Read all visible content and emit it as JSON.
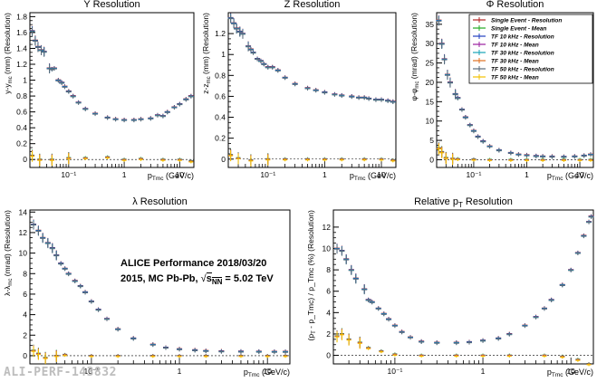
{
  "colors": {
    "single_event_resolution": "#b22222",
    "single_event_mean": "#22aa22",
    "tf10_resolution": "#1f3fbf",
    "tf10_mean": "#9b1fa0",
    "tf30_resolution": "#17a2b8",
    "tf30_mean": "#e07020",
    "tf50_resolution": "#5a6a7a",
    "tf50_mean": "#f2c200"
  },
  "watermark": "ALI-PERF-143832",
  "annotation": {
    "line1": "ALICE Performance 2018/03/20",
    "line2": "2015, MC Pb-Pb, ",
    "sqrt_s": "s",
    "sqrt_sub": "NN",
    "energy": " = 5.02 TeV"
  },
  "legend": [
    {
      "label": "Single Event - Resolution",
      "color": "#b22222"
    },
    {
      "label": "Single Event - Mean",
      "color": "#22aa22"
    },
    {
      "label": "TF 10 kHz - Resolution",
      "color": "#1f3fbf"
    },
    {
      "label": "TF 10 kHz - Mean",
      "color": "#9b1fa0"
    },
    {
      "label": "TF 30 kHz - Resolution",
      "color": "#17a2b8"
    },
    {
      "label": "TF 30 kHz - Mean",
      "color": "#e07020"
    },
    {
      "label": "TF 50 kHz - Resolution",
      "color": "#5a6a7a"
    },
    {
      "label": "TF 50 kHz - Mean",
      "color": "#f2c200"
    }
  ],
  "chart_data": [
    {
      "type": "scatter",
      "title": "Y Resolution",
      "ylabel": "y-y",
      "ylabel_sub": "mc",
      "ylabel_tail": " (mm) (Resolution)",
      "xlabel": "p",
      "xlabel_sub": "Tmc",
      "xlabel_tail": " (GeV/c)",
      "xscale": "log",
      "xlim": [
        0.02,
        18
      ],
      "ylim": [
        -0.1,
        1.85
      ],
      "yticks": [
        0,
        0.2,
        0.4,
        0.6,
        0.8,
        1,
        1.2,
        1.4,
        1.6,
        1.8
      ],
      "ytick_labels": [
        "0",
        "0.2",
        "0.4",
        "0.6",
        "0.8",
        "1",
        "1.2",
        "1.4",
        "1.6",
        "1.8"
      ],
      "xtick_labels": {
        "0.1": "10⁻¹",
        "1": "1",
        "10": "10"
      },
      "resolution": [
        [
          0.022,
          1.62
        ],
        [
          0.025,
          1.5
        ],
        [
          0.028,
          1.42
        ],
        [
          0.032,
          1.38
        ],
        [
          0.036,
          1.36
        ],
        [
          0.045,
          1.15
        ],
        [
          0.05,
          1.14
        ],
        [
          0.055,
          1.15
        ],
        [
          0.065,
          1.0
        ],
        [
          0.075,
          0.97
        ],
        [
          0.085,
          0.92
        ],
        [
          0.1,
          0.86
        ],
        [
          0.12,
          0.8
        ],
        [
          0.15,
          0.72
        ],
        [
          0.2,
          0.64
        ],
        [
          0.3,
          0.58
        ],
        [
          0.5,
          0.53
        ],
        [
          0.7,
          0.51
        ],
        [
          1,
          0.5
        ],
        [
          1.5,
          0.5
        ],
        [
          2,
          0.51
        ],
        [
          3,
          0.52
        ],
        [
          4,
          0.56
        ],
        [
          5,
          0.55
        ],
        [
          6,
          0.6
        ],
        [
          8,
          0.66
        ],
        [
          10,
          0.7
        ],
        [
          13,
          0.76
        ],
        [
          16,
          0.8
        ]
      ],
      "mean": [
        [
          0.022,
          0.05
        ],
        [
          0.03,
          0.0
        ],
        [
          0.05,
          0.0
        ],
        [
          0.1,
          0.02
        ],
        [
          0.2,
          0.02
        ],
        [
          0.5,
          0.03
        ],
        [
          1,
          0.0
        ],
        [
          2,
          0.01
        ],
        [
          5,
          0.0
        ],
        [
          10,
          0.0
        ],
        [
          16,
          -0.02
        ]
      ]
    },
    {
      "type": "scatter",
      "title": "Z Resolution",
      "ylabel": "z-z",
      "ylabel_sub": "mc",
      "ylabel_tail": " (mm) (Resolution)",
      "xlabel": "p",
      "xlabel_sub": "Tmc",
      "xlabel_tail": " (GeV/c)",
      "xscale": "log",
      "xlim": [
        0.02,
        18
      ],
      "ylim": [
        -0.08,
        1.4
      ],
      "yticks": [
        0,
        0.2,
        0.4,
        0.6,
        0.8,
        1,
        1.2
      ],
      "ytick_labels": [
        "0",
        "0.2",
        "0.4",
        "0.6",
        "0.8",
        "1",
        "1.2"
      ],
      "xtick_labels": {
        "0.1": "10⁻¹",
        "1": "1",
        "10": "10"
      },
      "resolution": [
        [
          0.022,
          1.35
        ],
        [
          0.025,
          1.3
        ],
        [
          0.028,
          1.25
        ],
        [
          0.032,
          1.22
        ],
        [
          0.036,
          1.2
        ],
        [
          0.045,
          1.08
        ],
        [
          0.05,
          1.05
        ],
        [
          0.055,
          1.02
        ],
        [
          0.065,
          0.96
        ],
        [
          0.075,
          0.94
        ],
        [
          0.085,
          0.91
        ],
        [
          0.1,
          0.88
        ],
        [
          0.12,
          0.88
        ],
        [
          0.15,
          0.85
        ],
        [
          0.2,
          0.78
        ],
        [
          0.3,
          0.72
        ],
        [
          0.5,
          0.68
        ],
        [
          0.7,
          0.66
        ],
        [
          1,
          0.64
        ],
        [
          1.5,
          0.62
        ],
        [
          2,
          0.61
        ],
        [
          3,
          0.6
        ],
        [
          4,
          0.59
        ],
        [
          5,
          0.59
        ],
        [
          6,
          0.58
        ],
        [
          8,
          0.57
        ],
        [
          10,
          0.57
        ],
        [
          13,
          0.56
        ],
        [
          16,
          0.55
        ]
      ],
      "mean": [
        [
          0.022,
          0.04
        ],
        [
          0.03,
          0.01
        ],
        [
          0.05,
          -0.01
        ],
        [
          0.1,
          0.0
        ],
        [
          0.2,
          0.0
        ],
        [
          0.5,
          0.0
        ],
        [
          1,
          0.0
        ],
        [
          2,
          0.0
        ],
        [
          5,
          0.0
        ],
        [
          10,
          0.0
        ],
        [
          16,
          -0.01
        ]
      ]
    },
    {
      "type": "scatter",
      "title": "Φ Resolution",
      "ylabel": "φ-φ",
      "ylabel_sub": "mc",
      "ylabel_tail": " (mrad) (Resolution)",
      "xlabel": "p",
      "xlabel_sub": "Tmc",
      "xlabel_tail": " (GeV/c)",
      "xscale": "log",
      "xlim": [
        0.02,
        18
      ],
      "ylim": [
        -2,
        38
      ],
      "yticks": [
        0,
        5,
        10,
        15,
        20,
        25,
        30,
        35
      ],
      "ytick_labels": [
        "0",
        "5",
        "10",
        "15",
        "20",
        "25",
        "30",
        "35"
      ],
      "xtick_labels": {
        "0.1": "10⁻¹",
        "1": "1",
        "10": "10"
      },
      "resolution": [
        [
          0.022,
          36
        ],
        [
          0.025,
          30
        ],
        [
          0.028,
          26
        ],
        [
          0.032,
          22
        ],
        [
          0.036,
          20
        ],
        [
          0.045,
          17
        ],
        [
          0.05,
          16
        ],
        [
          0.06,
          13
        ],
        [
          0.07,
          11
        ],
        [
          0.085,
          9
        ],
        [
          0.1,
          7.5
        ],
        [
          0.12,
          6
        ],
        [
          0.15,
          4.8
        ],
        [
          0.2,
          3.5
        ],
        [
          0.3,
          2.5
        ],
        [
          0.5,
          1.8
        ],
        [
          0.7,
          1.4
        ],
        [
          1,
          1.2
        ],
        [
          1.5,
          1.0
        ],
        [
          2,
          0.9
        ],
        [
          3,
          0.85
        ],
        [
          5,
          0.8
        ],
        [
          8,
          0.9
        ],
        [
          12,
          1.1
        ],
        [
          16,
          1.4
        ]
      ],
      "mean": [
        [
          0.022,
          3
        ],
        [
          0.025,
          2
        ],
        [
          0.03,
          0.5
        ],
        [
          0.04,
          0.3
        ],
        [
          0.05,
          0.2
        ],
        [
          0.1,
          0.1
        ],
        [
          0.2,
          0
        ],
        [
          0.5,
          0
        ],
        [
          1,
          0
        ],
        [
          2,
          0
        ],
        [
          5,
          0
        ],
        [
          10,
          0
        ],
        [
          16,
          0
        ]
      ]
    },
    {
      "type": "scatter",
      "title": "λ Resolution",
      "ylabel": "λ-λ",
      "ylabel_sub": "mc",
      "ylabel_tail": " (mrad) (Resolution)",
      "xlabel": "p",
      "xlabel_sub": "Tmc",
      "xlabel_tail": " (GeV/c)",
      "xscale": "log",
      "xlim": [
        0.02,
        18
      ],
      "ylim": [
        -0.8,
        14.2
      ],
      "yticks": [
        0,
        2,
        4,
        6,
        8,
        10,
        12,
        14
      ],
      "ytick_labels": [
        "0",
        "2",
        "4",
        "6",
        "8",
        "10",
        "12",
        "14"
      ],
      "xtick_labels": {
        "0.1": "10⁻¹",
        "1": "1",
        "10": "10"
      },
      "resolution": [
        [
          0.022,
          12.8
        ],
        [
          0.025,
          12.2
        ],
        [
          0.028,
          11.5
        ],
        [
          0.032,
          11.0
        ],
        [
          0.036,
          10.5
        ],
        [
          0.04,
          9.8
        ],
        [
          0.045,
          9.0
        ],
        [
          0.05,
          8.5
        ],
        [
          0.055,
          8.0
        ],
        [
          0.065,
          7.3
        ],
        [
          0.075,
          6.8
        ],
        [
          0.085,
          6.2
        ],
        [
          0.1,
          5.3
        ],
        [
          0.12,
          4.5
        ],
        [
          0.15,
          3.6
        ],
        [
          0.2,
          2.6
        ],
        [
          0.3,
          1.7
        ],
        [
          0.5,
          1.1
        ],
        [
          0.7,
          0.8
        ],
        [
          1,
          0.65
        ],
        [
          1.5,
          0.55
        ],
        [
          2,
          0.48
        ],
        [
          3,
          0.44
        ],
        [
          5,
          0.42
        ],
        [
          8,
          0.41
        ],
        [
          12,
          0.4
        ],
        [
          16,
          0.4
        ]
      ],
      "mean": [
        [
          0.022,
          0.5
        ],
        [
          0.025,
          0.2
        ],
        [
          0.03,
          -0.2
        ],
        [
          0.04,
          0.0
        ],
        [
          0.05,
          0.1
        ],
        [
          0.1,
          0.0
        ],
        [
          0.2,
          0
        ],
        [
          0.5,
          0
        ],
        [
          1,
          0
        ],
        [
          2,
          0
        ],
        [
          5,
          0
        ],
        [
          10,
          0
        ],
        [
          16,
          0
        ]
      ]
    },
    {
      "type": "scatter",
      "title": "Relative p",
      "title_sub": "T",
      "title_tail": " Resolution",
      "ylabel": "(p",
      "ylabel_sub": "T",
      "ylabel_tail": " - p_Tmc) / p_Tmc (%) (Resolution)",
      "xlabel": "p",
      "xlabel_sub": "Tmc",
      "xlabel_tail": " (GeV/c)",
      "xscale": "log",
      "xlim": [
        0.02,
        18
      ],
      "ylim": [
        -0.8,
        13.6
      ],
      "yticks": [
        0,
        2,
        4,
        6,
        8,
        10,
        12
      ],
      "ytick_labels": [
        "0",
        "2",
        "4",
        "6",
        "8",
        "10",
        "12"
      ],
      "xtick_labels": {
        "0.1": "10⁻¹",
        "1": "1",
        "10": "10"
      },
      "resolution": [
        [
          0.022,
          10.0
        ],
        [
          0.025,
          9.8
        ],
        [
          0.028,
          9.0
        ],
        [
          0.032,
          8.0
        ],
        [
          0.036,
          7.2
        ],
        [
          0.045,
          6.2
        ],
        [
          0.05,
          5.2
        ],
        [
          0.055,
          5.0
        ],
        [
          0.065,
          4.4
        ],
        [
          0.075,
          3.9
        ],
        [
          0.085,
          3.4
        ],
        [
          0.1,
          2.8
        ],
        [
          0.12,
          2.2
        ],
        [
          0.15,
          1.7
        ],
        [
          0.2,
          1.3
        ],
        [
          0.3,
          1.2
        ],
        [
          0.5,
          1.2
        ],
        [
          0.7,
          1.25
        ],
        [
          1,
          1.4
        ],
        [
          1.5,
          1.6
        ],
        [
          2,
          2.0
        ],
        [
          3,
          2.8
        ],
        [
          4,
          3.6
        ],
        [
          5,
          4.4
        ],
        [
          6,
          5.2
        ],
        [
          8,
          6.6
        ],
        [
          10,
          8.0
        ],
        [
          12,
          9.6
        ],
        [
          14,
          11.2
        ],
        [
          16,
          12.5
        ],
        [
          17,
          13.0
        ]
      ],
      "mean": [
        [
          0.022,
          1.8
        ],
        [
          0.025,
          2.0
        ],
        [
          0.03,
          1.5
        ],
        [
          0.04,
          1.2
        ],
        [
          0.05,
          0.7
        ],
        [
          0.07,
          0.4
        ],
        [
          0.1,
          0.1
        ],
        [
          0.2,
          0.0
        ],
        [
          0.5,
          0.0
        ],
        [
          1,
          0.0
        ],
        [
          2,
          0.0
        ],
        [
          5,
          0.0
        ],
        [
          8,
          -0.1
        ],
        [
          12,
          -0.4
        ],
        [
          16,
          -0.8
        ]
      ]
    }
  ]
}
